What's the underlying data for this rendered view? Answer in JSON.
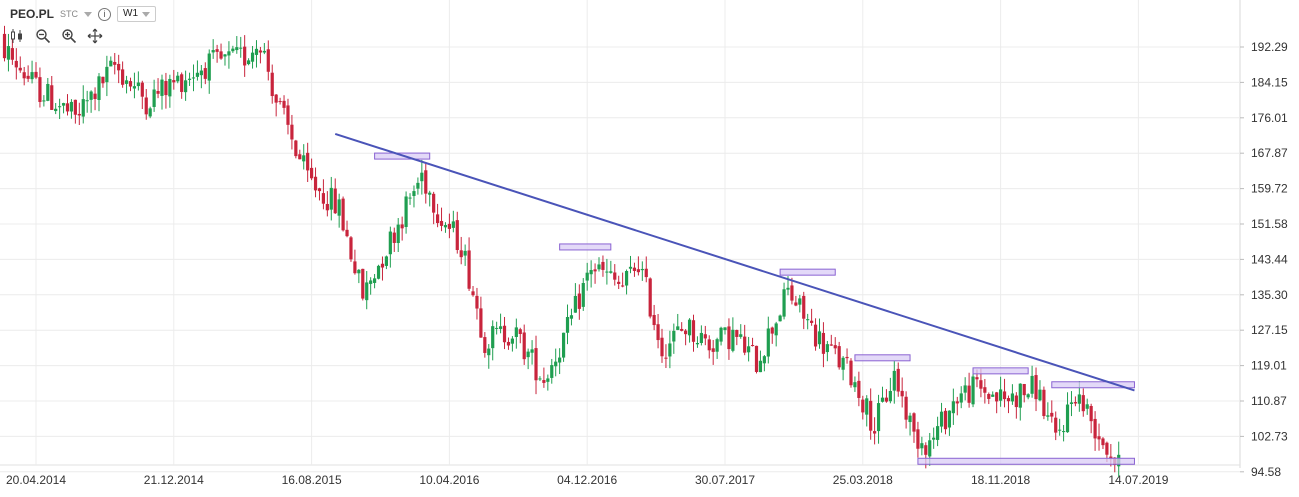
{
  "header": {
    "symbol": "PEO.PL",
    "chart_type_label": "STC",
    "interval": "W1",
    "info_glyph": "i"
  },
  "tools": [
    "candlestick-style-icon",
    "zoom-out-icon",
    "zoom-in-icon",
    "pan-move-icon"
  ],
  "colors": {
    "up": "#1f9e50",
    "down": "#c8243c",
    "trendline": "#4a54b8",
    "zone_stroke": "#8a63d2",
    "zone_fill": "#d9ccf5",
    "grid": "#ececec",
    "axis_text": "#333333"
  },
  "chart_data": {
    "type": "candlestick",
    "y_ticks": [
      "192.29",
      "184.15",
      "176.01",
      "167.87",
      "159.72",
      "151.58",
      "143.44",
      "135.30",
      "127.15",
      "119.01",
      "110.87",
      "102.73",
      "94.58"
    ],
    "x_ticks": [
      "20.04.2014",
      "21.12.2014",
      "16.08.2015",
      "10.04.2016",
      "04.12.2016",
      "30.07.2017",
      "25.03.2018",
      "18.11.2018",
      "14.07.2019"
    ],
    "ylim": [
      92.7,
      200.0
    ],
    "interval": "weekly",
    "grid": true,
    "trendline": {
      "start": {
        "date": "2015-10-04",
        "price": 172.3
      },
      "end": {
        "date": "2019-08-25",
        "price": 113.3
      }
    },
    "zones": [
      {
        "start": "2015-12-13",
        "end": "2016-03-20",
        "price": 167.2
      },
      {
        "start": "2016-11-06",
        "end": "2017-02-05",
        "price": 146.3
      },
      {
        "start": "2017-12-03",
        "end": "2018-03-11",
        "price": 140.5
      },
      {
        "start": "2018-04-15",
        "end": "2018-07-22",
        "price": 120.8
      },
      {
        "start": "2018-11-11",
        "end": "2019-02-17",
        "price": 117.8
      },
      {
        "start": "2019-03-31",
        "end": "2019-08-25",
        "price": 114.6
      },
      {
        "start": "2018-08-05",
        "end": "2019-08-25",
        "price": 97.0
      }
    ],
    "key_points": [
      [
        "2014-02-02",
        195.0
      ],
      [
        "2014-04-20",
        183.0
      ],
      [
        "2014-06-29",
        176.0
      ],
      [
        "2014-09-07",
        188.0
      ],
      [
        "2014-11-02",
        180.0
      ],
      [
        "2014-12-21",
        184.0
      ],
      [
        "2015-02-15",
        188.0
      ],
      [
        "2015-04-26",
        190.0
      ],
      [
        "2015-05-24",
        194.0
      ],
      [
        "2015-06-21",
        180.0
      ],
      [
        "2015-08-16",
        162.0
      ],
      [
        "2015-10-11",
        155.0
      ],
      [
        "2015-11-22",
        135.0
      ],
      [
        "2016-01-10",
        148.0
      ],
      [
        "2016-03-06",
        163.0
      ],
      [
        "2016-04-10",
        153.0
      ],
      [
        "2016-05-15",
        147.0
      ],
      [
        "2016-06-26",
        125.0
      ],
      [
        "2016-08-14",
        127.0
      ],
      [
        "2016-10-09",
        116.0
      ],
      [
        "2016-11-20",
        127.0
      ],
      [
        "2017-01-01",
        142.0
      ],
      [
        "2017-02-26",
        137.0
      ],
      [
        "2017-03-26",
        143.0
      ],
      [
        "2017-05-07",
        123.0
      ],
      [
        "2017-06-18",
        128.0
      ],
      [
        "2017-07-30",
        124.0
      ],
      [
        "2017-09-10",
        126.0
      ],
      [
        "2017-10-22",
        120.0
      ],
      [
        "2017-12-17",
        136.0
      ],
      [
        "2018-02-11",
        125.0
      ],
      [
        "2018-04-08",
        117.0
      ],
      [
        "2018-05-20",
        105.0
      ],
      [
        "2018-06-24",
        117.0
      ],
      [
        "2018-07-29",
        103.0
      ],
      [
        "2018-08-26",
        101.0
      ],
      [
        "2018-10-14",
        112.0
      ],
      [
        "2018-11-18",
        114.0
      ],
      [
        "2019-01-06",
        111.0
      ],
      [
        "2019-03-03",
        114.0
      ],
      [
        "2019-04-07",
        102.0
      ],
      [
        "2019-05-12",
        113.0
      ],
      [
        "2019-06-16",
        105.0
      ],
      [
        "2019-07-28",
        95.5
      ]
    ]
  }
}
